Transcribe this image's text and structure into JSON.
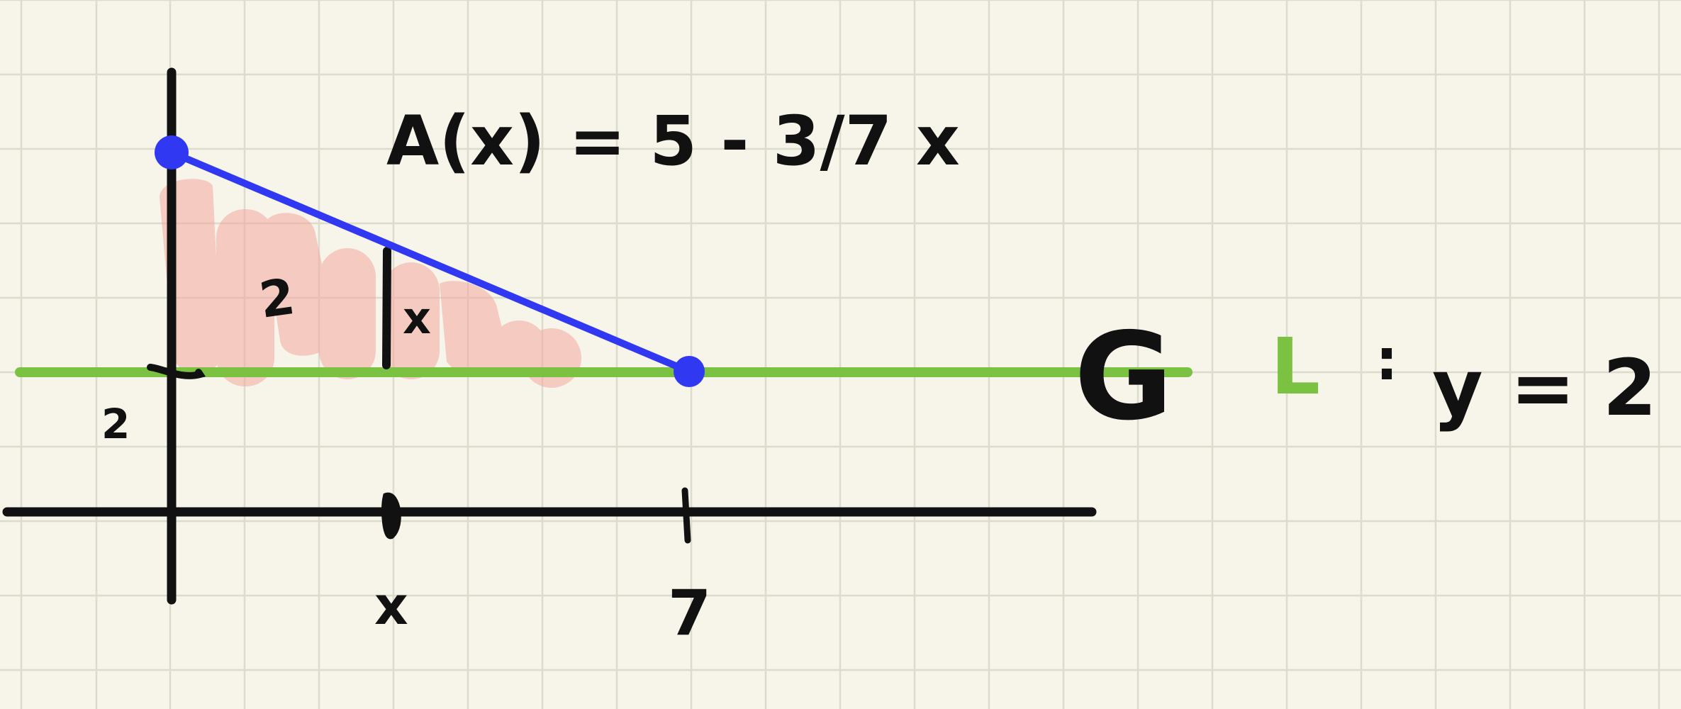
{
  "diagram": {
    "function_label": "A(x) = 5 - 3/7 x",
    "height_label": "2",
    "width_label": "x",
    "y_axis_mark": "2",
    "x_axis_marks": [
      "x",
      "7"
    ],
    "curve_label": "G",
    "line_name": "L",
    "line_sep": ":",
    "line_equation": "y = 2",
    "colors": {
      "background": "#f7f5ea",
      "grid": "#dcdccc",
      "axes": "#111111",
      "slanted_line": "#3138f2",
      "baseline": "#7bc142",
      "shading": "#f4a7a0"
    }
  }
}
